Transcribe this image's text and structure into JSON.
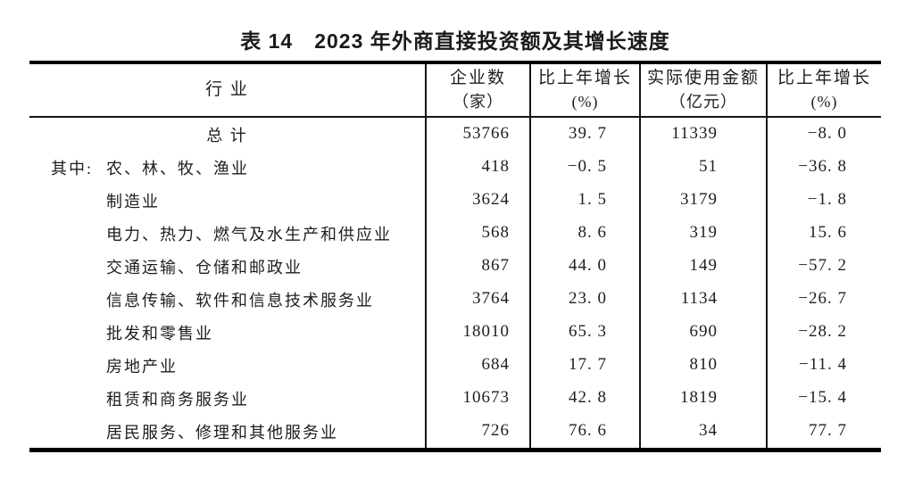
{
  "title": "表 14　2023 年外商直接投资额及其增长速度",
  "table": {
    "headers": {
      "industry": "行 业",
      "enterprises_line1": "企业数",
      "enterprises_line2": "（家）",
      "growth1_line1": "比上年增长",
      "growth1_line2": "(%)",
      "amount_line1": "实际使用金额",
      "amount_line2": "（亿元）",
      "growth2_line1": "比上年增长",
      "growth2_line2": "(%)"
    },
    "rows": [
      {
        "prefix": "",
        "industry": "总 计",
        "enterprises": "53766",
        "growth1": "39. 7",
        "amount": "11339",
        "growth2": "−8. 0"
      },
      {
        "prefix": "其中:",
        "industry": "农、林、牧、渔业",
        "enterprises": "418",
        "growth1": "−0. 5",
        "amount": "51",
        "growth2": "−36. 8"
      },
      {
        "prefix": "",
        "industry": "制造业",
        "enterprises": "3624",
        "growth1": "1. 5",
        "amount": "3179",
        "growth2": "−1. 8"
      },
      {
        "prefix": "",
        "industry": "电力、热力、燃气及水生产和供应业",
        "enterprises": "568",
        "growth1": "8. 6",
        "amount": "319",
        "growth2": "15. 6"
      },
      {
        "prefix": "",
        "industry": "交通运输、仓储和邮政业",
        "enterprises": "867",
        "growth1": "44. 0",
        "amount": "149",
        "growth2": "−57. 2"
      },
      {
        "prefix": "",
        "industry": "信息传输、软件和信息技术服务业",
        "enterprises": "3764",
        "growth1": "23. 0",
        "amount": "1134",
        "growth2": "−26. 7"
      },
      {
        "prefix": "",
        "industry": "批发和零售业",
        "enterprises": "18010",
        "growth1": "65. 3",
        "amount": "690",
        "growth2": "−28. 2"
      },
      {
        "prefix": "",
        "industry": "房地产业",
        "enterprises": "684",
        "growth1": "17. 7",
        "amount": "810",
        "growth2": "−11. 4"
      },
      {
        "prefix": "",
        "industry": "租赁和商务服务业",
        "enterprises": "10673",
        "growth1": "42. 8",
        "amount": "1819",
        "growth2": "−15. 4"
      },
      {
        "prefix": "",
        "industry": "居民服务、修理和其他服务业",
        "enterprises": "726",
        "growth1": "76. 6",
        "amount": "34",
        "growth2": "77. 7"
      }
    ]
  }
}
